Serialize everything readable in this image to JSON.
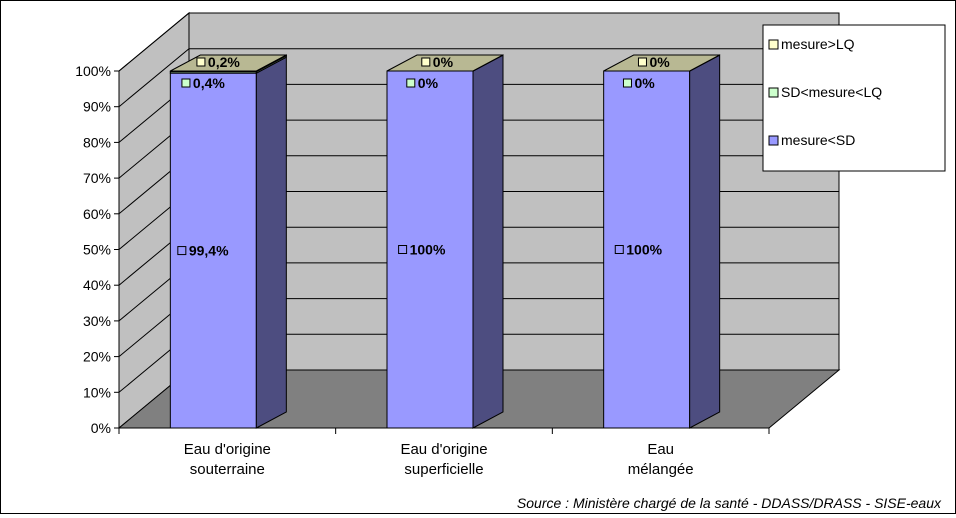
{
  "chart_data": {
    "type": "bar",
    "stacked": true,
    "percent": true,
    "three_d": true,
    "categories": [
      [
        "Eau d'origine",
        "souterraine"
      ],
      [
        "Eau d'origine",
        "superficielle"
      ],
      [
        "Eau",
        "mélangée"
      ]
    ],
    "series": [
      {
        "name": "mesure<SD",
        "color": "#9999ff",
        "values": [
          99.4,
          100,
          100
        ],
        "labels": [
          "99,4%",
          "100%",
          "100%"
        ]
      },
      {
        "name": "SD<mesure<LQ",
        "color": "#ccffcc",
        "values": [
          0.4,
          0,
          0
        ],
        "labels": [
          "0,4%",
          "0%",
          "0%"
        ]
      },
      {
        "name": "mesure>LQ",
        "color": "#ffffcc",
        "values": [
          0.2,
          0,
          0
        ],
        "labels": [
          "0,2%",
          "0%",
          "0%"
        ]
      }
    ],
    "legend_order": [
      "mesure>LQ",
      "SD<mesure<LQ",
      "mesure<SD"
    ],
    "legend_position": "top-right",
    "y_ticks": [
      "0%",
      "10%",
      "20%",
      "30%",
      "40%",
      "50%",
      "60%",
      "70%",
      "80%",
      "90%",
      "100%"
    ],
    "ylim": [
      0,
      100
    ],
    "grid": true,
    "wall_color": "#c0c0c0",
    "floor_color": "#808080",
    "source": "Source : Ministère chargé de la santé - DDASS/DRASS - SISE-eaux"
  }
}
